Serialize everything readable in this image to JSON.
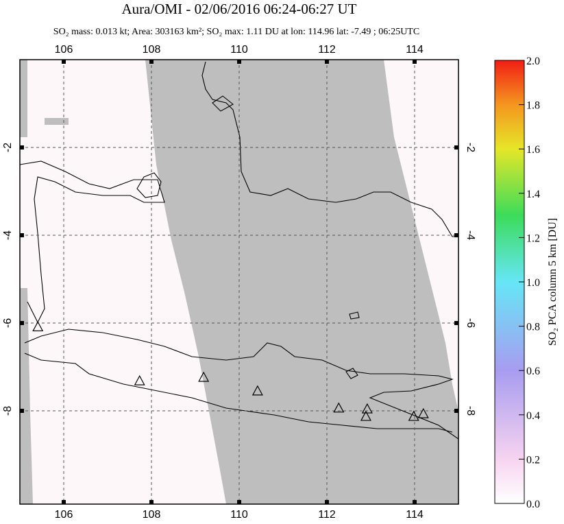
{
  "map": {
    "title": "Aura/OMI - 02/06/2016 06:24-06:27 UT",
    "subtitle": "SO₂ mass: 0.013 kt; Area: 303163 km²; SO₂ max: 1.11 DU at lon: 114.96 lat: -7.49 ; 06:25UTC",
    "xlim": [
      105,
      115
    ],
    "ylim": [
      -10.125,
      0
    ],
    "xticks": [
      106,
      108,
      110,
      112,
      114
    ],
    "yticks": [
      -2,
      -4,
      -6,
      -8
    ],
    "volcanoes": {
      "lon": [
        105.41,
        107.73,
        109.19,
        110.42,
        112.27,
        112.92,
        112.89,
        113.98,
        114.2
      ],
      "lat": [
        -6.1,
        -7.33,
        -7.25,
        -7.56,
        -7.95,
        -7.97,
        -8.14,
        -8.14,
        -8.08
      ]
    }
  },
  "colorbar": {
    "label": "SO₂ PCA column 5 km [DU]",
    "lim": [
      0,
      2
    ],
    "ticks": [
      {
        "value": 0,
        "label": "0.0"
      },
      {
        "value": 0.2,
        "label": "0.2"
      },
      {
        "value": 0.4,
        "label": "0.4"
      },
      {
        "value": 0.6,
        "label": "0.6"
      },
      {
        "value": 0.8,
        "label": "0.8"
      },
      {
        "value": 1,
        "label": "1.0"
      },
      {
        "value": 1.2,
        "label": "1.2"
      },
      {
        "value": 1.4,
        "label": "1.4"
      },
      {
        "value": 1.6,
        "label": "1.6"
      },
      {
        "value": 1.8,
        "label": "1.8"
      },
      {
        "value": 2,
        "label": "2.0"
      }
    ]
  }
}
